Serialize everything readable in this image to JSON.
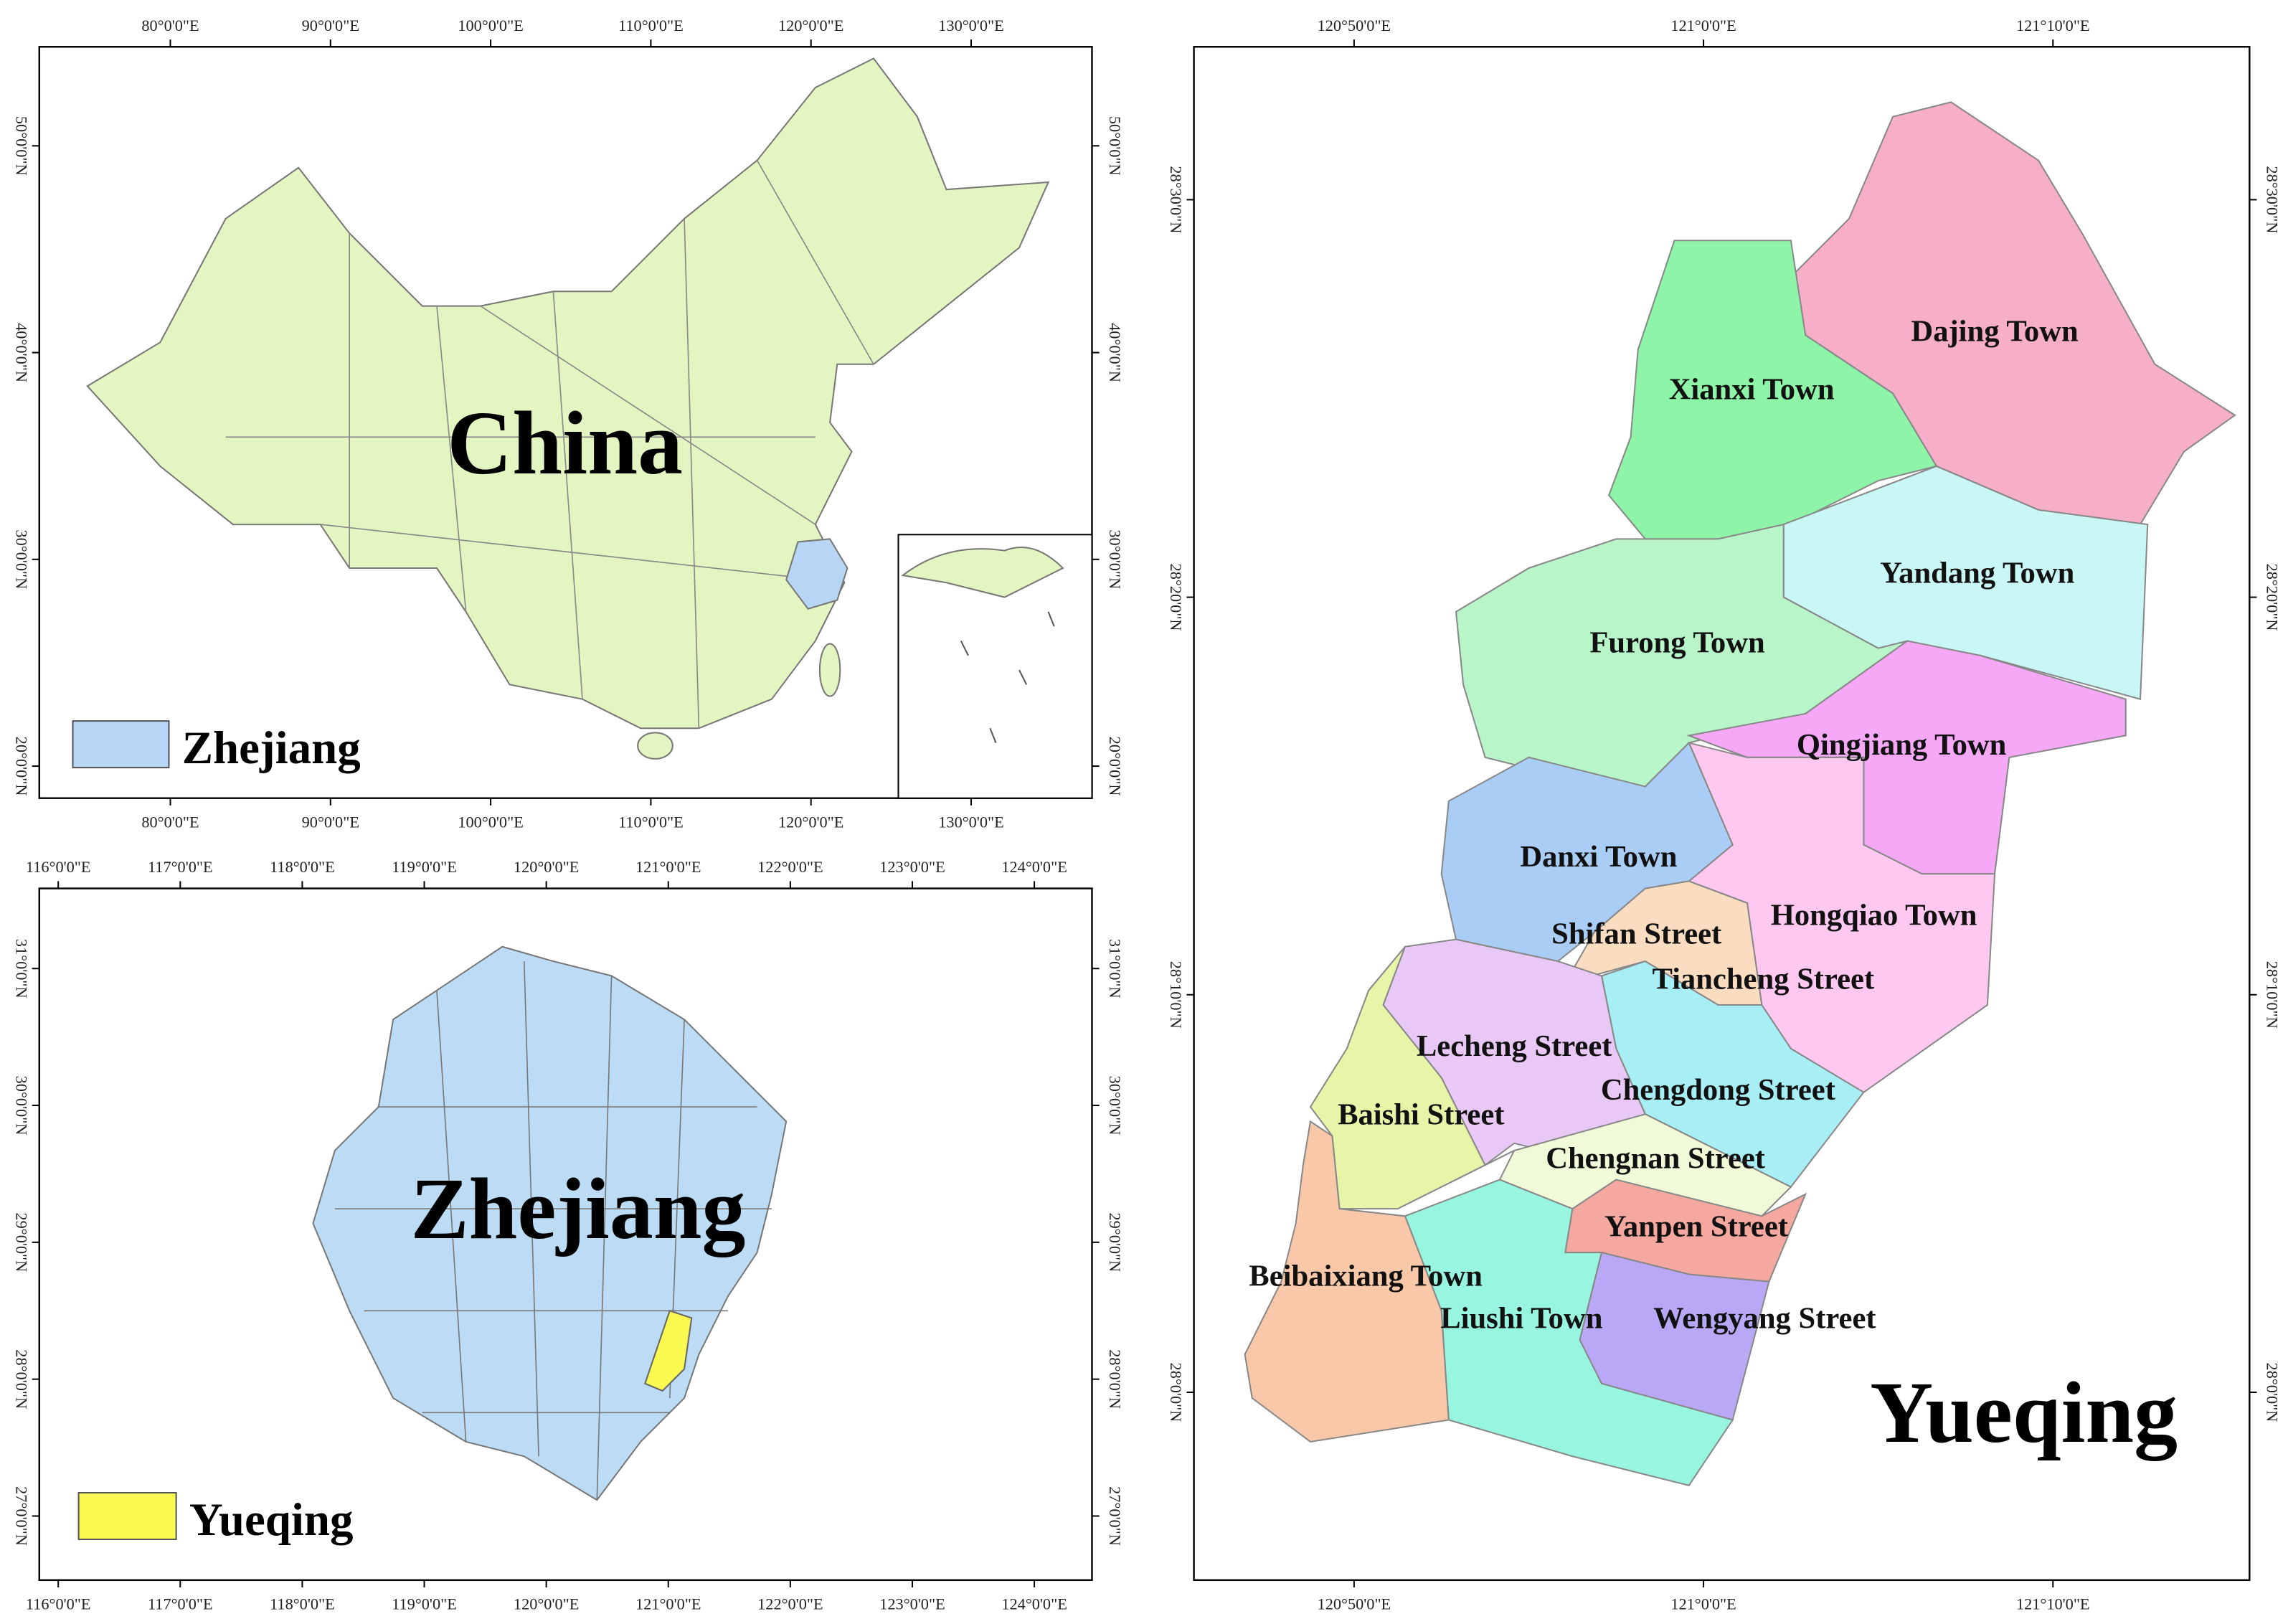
{
  "panels": [
    {
      "label": "China",
      "x_ticks": [
        "80°0'0\"E",
        "90°0'0\"E",
        "100°0'0\"E",
        "110°0'0\"E",
        "120°0'0\"E",
        "130°0'0\"E"
      ],
      "y_ticks": [
        "50°0'0\"N",
        "40°0'0\"N",
        "30°0'0\"N",
        "20°0'0\"N"
      ],
      "legend": "Zhejiang"
    },
    {
      "label": "Zhejiang",
      "x_ticks": [
        "116°0'0\"E",
        "117°0'0\"E",
        "118°0'0\"E",
        "119°0'0\"E",
        "120°0'0\"E",
        "121°0'0\"E",
        "122°0'0\"E",
        "123°0'0\"E",
        "124°0'0\"E"
      ],
      "y_ticks": [
        "31°0'0\"N",
        "30°0'0\"N",
        "29°0'0\"N",
        "28°0'0\"N",
        "27°0'0\"N"
      ],
      "legend": "Yueqing"
    },
    {
      "label": "Yueqing",
      "x_ticks": [
        "120°50'0\"E",
        "121°0'0\"E",
        "121°10'0\"E"
      ],
      "y_ticks": [
        "28°30'0\"N",
        "28°20'0\"N",
        "28°10'0\"N",
        "28°0'0\"N"
      ],
      "regions": [
        "Dajing Town",
        "Xianxi Town",
        "Yandang Town",
        "Furong Town",
        "Qingjiang Town",
        "Danxi Town",
        "Shifan Street",
        "Hongqiao Town",
        "Tiancheng Street",
        "Lecheng Street",
        "Chengdong Street",
        "Baishi Street",
        "Chengnan Street",
        "Yanpen Street",
        "Beibaixiang Town",
        "Liushi Town",
        "Wengyang Street"
      ]
    }
  ]
}
